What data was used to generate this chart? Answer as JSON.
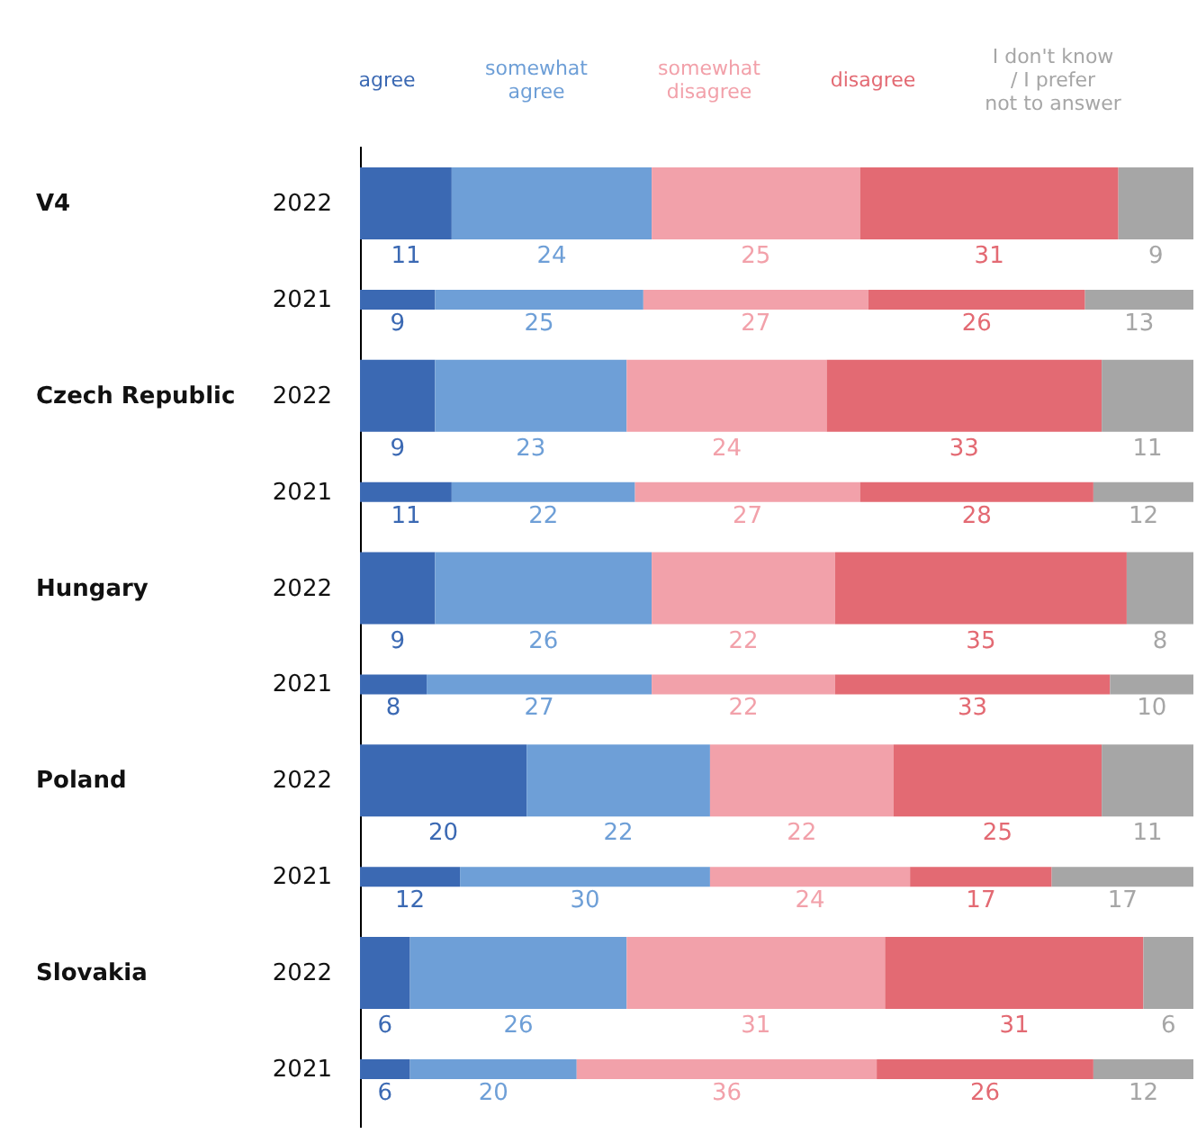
{
  "chart_data": {
    "type": "bar",
    "orientation": "horizontal",
    "stacked": true,
    "data_labels": true,
    "legend": "top",
    "xlim": [
      0,
      100
    ],
    "categories": [
      "2022",
      "2021",
      "2022",
      "2021",
      "2022",
      "2021",
      "2022",
      "2021",
      "2022",
      "2021"
    ],
    "annotations": [
      "V4",
      "Czech Republic",
      "Hungary",
      "Poland",
      "Slovakia"
    ],
    "series": [
      {
        "name": "agree",
        "color": "#3b69b3",
        "values": [
          11,
          9,
          9,
          11,
          9,
          8,
          20,
          12,
          6,
          6
        ]
      },
      {
        "name": "somewhat agree",
        "color": "#6e9fd7",
        "values": [
          24,
          25,
          23,
          22,
          26,
          27,
          22,
          30,
          26,
          20
        ]
      },
      {
        "name": "somewhat disagree",
        "color": "#f2a1aa",
        "values": [
          25,
          27,
          24,
          27,
          22,
          22,
          22,
          24,
          31,
          36
        ]
      },
      {
        "name": "disagree",
        "color": "#e36a73",
        "values": [
          31,
          26,
          33,
          28,
          35,
          33,
          25,
          17,
          31,
          26
        ]
      },
      {
        "name": "I don't know / I prefer not to answer",
        "color": "#a6a6a6",
        "values": [
          9,
          13,
          11,
          12,
          8,
          10,
          11,
          17,
          6,
          12
        ]
      }
    ]
  }
}
